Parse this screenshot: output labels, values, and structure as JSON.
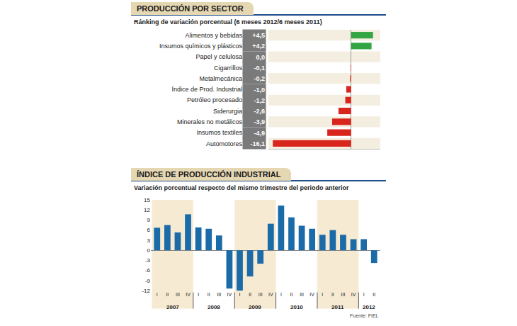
{
  "chart_data": [
    {
      "type": "bar",
      "title": "PRODUCCIÓN POR SECTOR",
      "subtitle": "Ránking de variación porcentual (6 meses 2012/6 meses 2011)",
      "orientation": "horizontal",
      "categories": [
        "Alimentos y bebidas",
        "Insumos químicos y plásticos",
        "Papel y celulosa",
        "Cigarrillos",
        "Metalmecánica",
        "Índice de Prod. Industrial",
        "Petróleo procesado",
        "Siderurgia",
        "Minerales no metálicos",
        "Insumos textiles",
        "Automotores"
      ],
      "values": [
        4.5,
        4.2,
        0.0,
        -0.1,
        -0.2,
        -1.0,
        -1.2,
        -2.6,
        -3.9,
        -4.9,
        -16.1
      ],
      "value_labels": [
        "+4,5",
        "+4,2",
        "0,0",
        "-0,1",
        "-0,2",
        "-1,0",
        "-1,2",
        "-2,6",
        "-3,9",
        "-4,9",
        "-16,1"
      ],
      "colors": [
        "#34a543",
        "#34a543",
        "#34a543",
        "#d9261c",
        "#d9261c",
        "#d9261c",
        "#d9261c",
        "#d9261c",
        "#d9261c",
        "#d9261c",
        "#d9261c"
      ],
      "xlim": [
        -17,
        6
      ],
      "data_labels": true,
      "tick_labels": "y"
    },
    {
      "type": "bar",
      "title": "ÍNDICE DE PRODUCCIÓN INDUSTRIAL",
      "subtitle": "Variación porcentual respecto del mismo trimestre del periodo anterior",
      "categories": [
        "I",
        "II",
        "III",
        "IV",
        "I",
        "II",
        "III",
        "IV",
        "I",
        "II",
        "III",
        "IV",
        "I",
        "II",
        "III",
        "IV",
        "I",
        "II",
        "III",
        "IV",
        "I",
        "II"
      ],
      "groups": [
        {
          "label": "2007",
          "size": 4
        },
        {
          "label": "2008",
          "size": 4
        },
        {
          "label": "2009",
          "size": 4
        },
        {
          "label": "2010",
          "size": 4
        },
        {
          "label": "2011",
          "size": 4
        },
        {
          "label": "2012",
          "size": 2
        }
      ],
      "values": [
        6.7,
        7.5,
        5.3,
        10.7,
        6.8,
        6.4,
        4.4,
        -11.4,
        -12.0,
        -7.8,
        -4.0,
        7.9,
        13.3,
        9.8,
        7.3,
        6.4,
        4.6,
        6.0,
        4.6,
        3.3,
        3.3,
        -3.8
      ],
      "color": "#1a6ba8",
      "ylim": [
        -12,
        15
      ],
      "yticks": [
        -12,
        -9,
        -6,
        -3,
        0,
        3,
        6,
        9,
        12,
        15
      ],
      "grid": false,
      "annotations": [
        "Fuente: FIEL"
      ]
    }
  ]
}
